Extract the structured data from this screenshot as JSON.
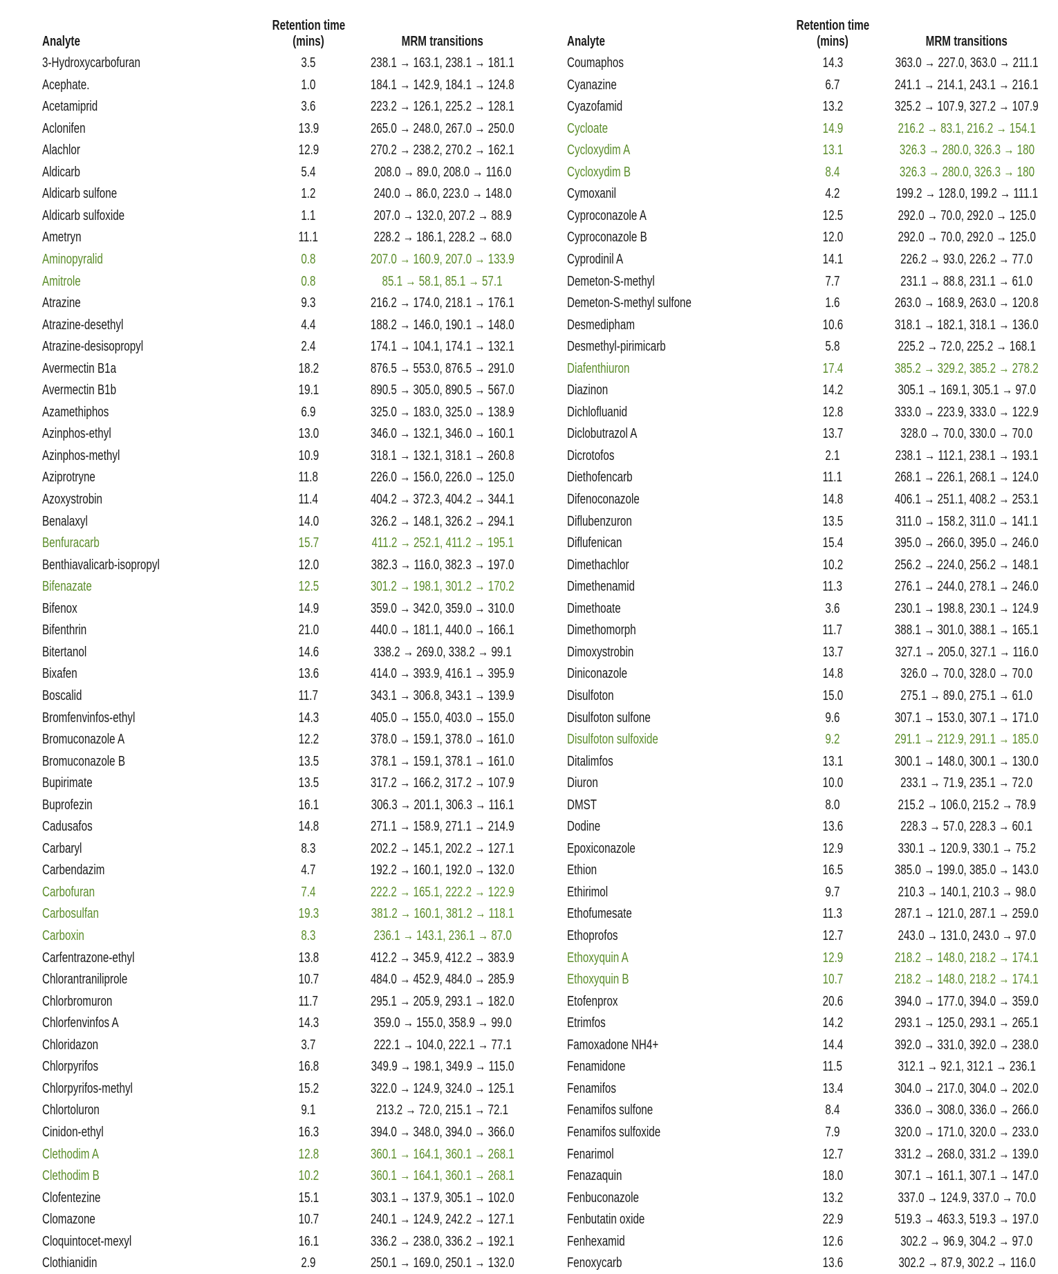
{
  "headers": {
    "analyte": "Analyte",
    "retention_line1": "Retention time",
    "retention_line2": "(mins)",
    "mrm": "MRM transitions"
  },
  "colors": {
    "text": "#1a1a1a",
    "highlight": "#5b8c2a"
  },
  "left_table": [
    {
      "analyte": "3-Hydroxycarbofuran",
      "rt": "3.5",
      "mrm": "238.1 → 163.1, 238.1 → 181.1",
      "highlighted": false
    },
    {
      "analyte": "Acephate.",
      "rt": "1.0",
      "mrm": "184.1 → 142.9, 184.1 → 124.8",
      "highlighted": false
    },
    {
      "analyte": "Acetamiprid",
      "rt": "3.6",
      "mrm": "223.2 → 126.1, 225.2 → 128.1",
      "highlighted": false
    },
    {
      "analyte": "Aclonifen",
      "rt": "13.9",
      "mrm": "265.0 → 248.0, 267.0 → 250.0",
      "highlighted": false
    },
    {
      "analyte": "Alachlor",
      "rt": "12.9",
      "mrm": "270.2 → 238.2, 270.2 → 162.1",
      "highlighted": false
    },
    {
      "analyte": "Aldicarb",
      "rt": "5.4",
      "mrm": "208.0 → 89.0, 208.0 → 116.0",
      "highlighted": false
    },
    {
      "analyte": "Aldicarb sulfone",
      "rt": "1.2",
      "mrm": "240.0 → 86.0, 223.0 → 148.0",
      "highlighted": false
    },
    {
      "analyte": "Aldicarb sulfoxide",
      "rt": "1.1",
      "mrm": "207.0 → 132.0, 207.2 → 88.9",
      "highlighted": false
    },
    {
      "analyte": "Ametryn",
      "rt": "11.1",
      "mrm": "228.2 → 186.1, 228.2 → 68.0",
      "highlighted": false
    },
    {
      "analyte": "Aminopyralid",
      "rt": "0.8",
      "mrm": "207.0 → 160.9, 207.0 → 133.9",
      "highlighted": true
    },
    {
      "analyte": "Amitrole",
      "rt": "0.8",
      "mrm": "85.1 → 58.1, 85.1 → 57.1",
      "highlighted": true
    },
    {
      "analyte": "Atrazine",
      "rt": "9.3",
      "mrm": "216.2 → 174.0, 218.1 → 176.1",
      "highlighted": false
    },
    {
      "analyte": "Atrazine-desethyl",
      "rt": "4.4",
      "mrm": "188.2 → 146.0, 190.1 → 148.0",
      "highlighted": false
    },
    {
      "analyte": "Atrazine-desisopropyl",
      "rt": "2.4",
      "mrm": "174.1 → 104.1, 174.1 → 132.1",
      "highlighted": false
    },
    {
      "analyte": "Avermectin B1a",
      "rt": "18.2",
      "mrm": "876.5 → 553.0, 876.5 → 291.0",
      "highlighted": false
    },
    {
      "analyte": "Avermectin B1b",
      "rt": "19.1",
      "mrm": "890.5 → 305.0, 890.5 → 567.0",
      "highlighted": false
    },
    {
      "analyte": "Azamethiphos",
      "rt": "6.9",
      "mrm": "325.0 → 183.0, 325.0 → 138.9",
      "highlighted": false
    },
    {
      "analyte": "Azinphos-ethyl",
      "rt": "13.0",
      "mrm": "346.0 → 132.1, 346.0 → 160.1",
      "highlighted": false
    },
    {
      "analyte": "Azinphos-methyl",
      "rt": "10.9",
      "mrm": "318.1 → 132.1, 318.1 → 260.8",
      "highlighted": false
    },
    {
      "analyte": "Aziprotryne",
      "rt": "11.8",
      "mrm": "226.0 → 156.0, 226.0 → 125.0",
      "highlighted": false
    },
    {
      "analyte": "Azoxystrobin",
      "rt": "11.4",
      "mrm": "404.2 → 372.3, 404.2 → 344.1",
      "highlighted": false
    },
    {
      "analyte": "Benalaxyl",
      "rt": "14.0",
      "mrm": "326.2 → 148.1, 326.2 → 294.1",
      "highlighted": false
    },
    {
      "analyte": "Benfuracarb",
      "rt": "15.7",
      "mrm": "411.2 → 252.1, 411.2 → 195.1",
      "highlighted": true
    },
    {
      "analyte": "Benthiavalicarb-isopropyl",
      "rt": "12.0",
      "mrm": "382.3 → 116.0, 382.3 → 197.0",
      "highlighted": false
    },
    {
      "analyte": "Bifenazate",
      "rt": "12.5",
      "mrm": "301.2 → 198.1, 301.2 → 170.2",
      "highlighted": true
    },
    {
      "analyte": "Bifenox",
      "rt": "14.9",
      "mrm": "359.0 → 342.0, 359.0 → 310.0",
      "highlighted": false
    },
    {
      "analyte": "Bifenthrin",
      "rt": "21.0",
      "mrm": "440.0 → 181.1, 440.0 → 166.1",
      "highlighted": false
    },
    {
      "analyte": "Bitertanol",
      "rt": "14.6",
      "mrm": "338.2 → 269.0, 338.2 → 99.1",
      "highlighted": false
    },
    {
      "analyte": "Bixafen",
      "rt": "13.6",
      "mrm": "414.0 → 393.9, 416.1 → 395.9",
      "highlighted": false
    },
    {
      "analyte": "Boscalid",
      "rt": "11.7",
      "mrm": "343.1 → 306.8, 343.1 → 139.9",
      "highlighted": false
    },
    {
      "analyte": "Bromfenvinfos-ethyl",
      "rt": "14.3",
      "mrm": "405.0 → 155.0, 403.0 → 155.0",
      "highlighted": false
    },
    {
      "analyte": "Bromuconazole A",
      "rt": "12.2",
      "mrm": "378.0 → 159.1, 378.0 → 161.0",
      "highlighted": false
    },
    {
      "analyte": "Bromuconazole B",
      "rt": "13.5",
      "mrm": "378.1 → 159.1, 378.1 → 161.0",
      "highlighted": false
    },
    {
      "analyte": "Bupirimate",
      "rt": "13.5",
      "mrm": "317.2 → 166.2, 317.2 → 107.9",
      "highlighted": false
    },
    {
      "analyte": "Buprofezin",
      "rt": "16.1",
      "mrm": "306.3 → 201.1, 306.3 → 116.1",
      "highlighted": false
    },
    {
      "analyte": "Cadusafos",
      "rt": "14.8",
      "mrm": "271.1 → 158.9, 271.1 → 214.9",
      "highlighted": false
    },
    {
      "analyte": "Carbaryl",
      "rt": "8.3",
      "mrm": "202.2 → 145.1, 202.2 → 127.1",
      "highlighted": false
    },
    {
      "analyte": "Carbendazim",
      "rt": "4.7",
      "mrm": "192.2 → 160.1, 192.0 → 132.0",
      "highlighted": false
    },
    {
      "analyte": "Carbofuran",
      "rt": "7.4",
      "mrm": "222.2 → 165.1, 222.2 → 122.9",
      "highlighted": true
    },
    {
      "analyte": "Carbosulfan",
      "rt": "19.3",
      "mrm": "381.2 → 160.1, 381.2 → 118.1",
      "highlighted": true
    },
    {
      "analyte": "Carboxin",
      "rt": "8.3",
      "mrm": "236.1 → 143.1, 236.1 → 87.0",
      "highlighted": true
    },
    {
      "analyte": "Carfentrazone-ethyl",
      "rt": "13.8",
      "mrm": "412.2 → 345.9, 412.2 → 383.9",
      "highlighted": false
    },
    {
      "analyte": "Chlorantraniliprole",
      "rt": "10.7",
      "mrm": "484.0 → 452.9, 484.0 → 285.9",
      "highlighted": false
    },
    {
      "analyte": "Chlorbromuron",
      "rt": "11.7",
      "mrm": "295.1 → 205.9, 293.1 → 182.0",
      "highlighted": false
    },
    {
      "analyte": "Chlorfenvinfos  A",
      "rt": "14.3",
      "mrm": "359.0 → 155.0, 358.9 → 99.0",
      "highlighted": false
    },
    {
      "analyte": "Chloridazon",
      "rt": "3.7",
      "mrm": "222.1 → 104.0, 222.1 → 77.1",
      "highlighted": false
    },
    {
      "analyte": "Chlorpyrifos",
      "rt": "16.8",
      "mrm": "349.9 → 198.1, 349.9 → 115.0",
      "highlighted": false
    },
    {
      "analyte": "Chlorpyrifos-methyl",
      "rt": "15.2",
      "mrm": "322.0 → 124.9, 324.0 → 125.1",
      "highlighted": false
    },
    {
      "analyte": "Chlortoluron",
      "rt": "9.1",
      "mrm": "213.2 → 72.0, 215.1 → 72.1",
      "highlighted": false
    },
    {
      "analyte": "Cinidon-ethyl",
      "rt": "16.3",
      "mrm": "394.0 → 348.0, 394.0 → 366.0",
      "highlighted": false
    },
    {
      "analyte": "Clethodim A",
      "rt": "12.8",
      "mrm": "360.1 → 164.1, 360.1 → 268.1",
      "highlighted": true
    },
    {
      "analyte": "Clethodim B",
      "rt": "10.2",
      "mrm": "360.1 → 164.1, 360.1 → 268.1",
      "highlighted": true
    },
    {
      "analyte": "Clofentezine",
      "rt": "15.1",
      "mrm": "303.1 → 137.9, 305.1 → 102.0",
      "highlighted": false
    },
    {
      "analyte": "Clomazone",
      "rt": "10.7",
      "mrm": "240.1 → 124.9, 242.2 → 127.1",
      "highlighted": false
    },
    {
      "analyte": "Cloquintocet-mexyl",
      "rt": "16.1",
      "mrm": "336.2 → 238.0, 336.2 → 192.1",
      "highlighted": false
    },
    {
      "analyte": "Clothianidin",
      "rt": "2.9",
      "mrm": "250.1 → 169.0, 250.1 → 132.0",
      "highlighted": false
    }
  ],
  "right_table": [
    {
      "analyte": "Coumaphos",
      "rt": "14.3",
      "mrm": "363.0 → 227.0, 363.0 → 211.1",
      "highlighted": false
    },
    {
      "analyte": "Cyanazine",
      "rt": "6.7",
      "mrm": "241.1 → 214.1, 243.1 → 216.1",
      "highlighted": false
    },
    {
      "analyte": "Cyazofamid",
      "rt": "13.2",
      "mrm": "325.2 → 107.9, 327.2 → 107.9",
      "highlighted": false
    },
    {
      "analyte": "Cycloate",
      "rt": "14.9",
      "mrm": "216.2 → 83.1, 216.2 → 154.1",
      "highlighted": true
    },
    {
      "analyte": "Cycloxydim A",
      "rt": "13.1",
      "mrm": "326.3 → 280.0, 326.3 → 180",
      "highlighted": true
    },
    {
      "analyte": "Cycloxydim B",
      "rt": "8.4",
      "mrm": "326.3 → 280.0, 326.3 → 180",
      "highlighted": true
    },
    {
      "analyte": "Cymoxanil",
      "rt": "4.2",
      "mrm": "199.2 → 128.0, 199.2 → 111.1",
      "highlighted": false
    },
    {
      "analyte": "Cyproconazole A",
      "rt": "12.5",
      "mrm": "292.0 → 70.0, 292.0 → 125.0",
      "highlighted": false
    },
    {
      "analyte": "Cyproconazole B",
      "rt": "12.0",
      "mrm": "292.0 → 70.0, 292.0 → 125.0",
      "highlighted": false
    },
    {
      "analyte": "Cyprodinil A",
      "rt": "14.1",
      "mrm": "226.2 → 93.0, 226.2 → 77.0",
      "highlighted": false
    },
    {
      "analyte": "Demeton-S-methyl",
      "rt": "7.7",
      "mrm": "231.1 → 88.8, 231.1 → 61.0",
      "highlighted": false
    },
    {
      "analyte": "Demeton-S-methyl sulfone",
      "rt": "1.6",
      "mrm": "263.0 → 168.9, 263.0 → 120.8",
      "highlighted": false
    },
    {
      "analyte": "Desmedipham",
      "rt": "10.6",
      "mrm": "318.1 → 182.1, 318.1 → 136.0",
      "highlighted": false
    },
    {
      "analyte": "Desmethyl-pirimicarb",
      "rt": "5.8",
      "mrm": "225.2 → 72.0, 225.2 → 168.1",
      "highlighted": false
    },
    {
      "analyte": "Diafenthiuron",
      "rt": "17.4",
      "mrm": "385.2 → 329.2, 385.2 → 278.2",
      "highlighted": true
    },
    {
      "analyte": "Diazinon",
      "rt": "14.2",
      "mrm": "305.1 → 169.1, 305.1 → 97.0",
      "highlighted": false
    },
    {
      "analyte": "Dichlofluanid",
      "rt": "12.8",
      "mrm": "333.0 → 223.9, 333.0 → 122.9",
      "highlighted": false
    },
    {
      "analyte": "Diclobutrazol A",
      "rt": "13.7",
      "mrm": "328.0 → 70.0, 330.0 → 70.0",
      "highlighted": false
    },
    {
      "analyte": "Dicrotofos",
      "rt": "2.1",
      "mrm": "238.1 → 112.1, 238.1 → 193.1",
      "highlighted": false
    },
    {
      "analyte": "Diethofencarb",
      "rt": "11.1",
      "mrm": "268.1 → 226.1, 268.1 → 124.0",
      "highlighted": false
    },
    {
      "analyte": "Difenoconazole",
      "rt": "14.8",
      "mrm": "406.1 → 251.1, 408.2 → 253.1",
      "highlighted": false
    },
    {
      "analyte": "Diflubenzuron",
      "rt": "13.5",
      "mrm": "311.0 → 158.2, 311.0 → 141.1",
      "highlighted": false
    },
    {
      "analyte": "Diflufenican",
      "rt": "15.4",
      "mrm": "395.0 → 266.0, 395.0 → 246.0",
      "highlighted": false
    },
    {
      "analyte": "Dimethachlor",
      "rt": "10.2",
      "mrm": "256.2 → 224.0, 256.2 → 148.1",
      "highlighted": false
    },
    {
      "analyte": "Dimethenamid",
      "rt": "11.3",
      "mrm": "276.1 → 244.0, 278.1 → 246.0",
      "highlighted": false
    },
    {
      "analyte": "Dimethoate",
      "rt": "3.6",
      "mrm": "230.1 → 198.8, 230.1 → 124.9",
      "highlighted": false
    },
    {
      "analyte": "Dimethomorph",
      "rt": "11.7",
      "mrm": "388.1 → 301.0, 388.1 → 165.1",
      "highlighted": false
    },
    {
      "analyte": "Dimoxystrobin",
      "rt": "13.7",
      "mrm": "327.1 → 205.0, 327.1 → 116.0",
      "highlighted": false
    },
    {
      "analyte": "Diniconazole",
      "rt": "14.8",
      "mrm": "326.0 → 70.0, 328.0 → 70.0",
      "highlighted": false
    },
    {
      "analyte": "Disulfoton",
      "rt": "15.0",
      "mrm": "275.1 → 89.0, 275.1 → 61.0",
      "highlighted": false
    },
    {
      "analyte": "Disulfoton sulfone",
      "rt": "9.6",
      "mrm": "307.1 → 153.0, 307.1 → 171.0",
      "highlighted": false
    },
    {
      "analyte": "Disulfoton sulfoxide",
      "rt": "9.2",
      "mrm": "291.1 → 212.9, 291.1 → 185.0",
      "highlighted": true
    },
    {
      "analyte": "Ditalimfos",
      "rt": "13.1",
      "mrm": "300.1 → 148.0, 300.1 → 130.0",
      "highlighted": false
    },
    {
      "analyte": "Diuron",
      "rt": "10.0",
      "mrm": "233.1 → 71.9, 235.1 → 72.0",
      "highlighted": false
    },
    {
      "analyte": "DMST",
      "rt": "8.0",
      "mrm": "215.2 → 106.0, 215.2 → 78.9",
      "highlighted": false
    },
    {
      "analyte": "Dodine",
      "rt": "13.6",
      "mrm": "228.3 → 57.0, 228.3 → 60.1",
      "highlighted": false
    },
    {
      "analyte": "Epoxiconazole",
      "rt": "12.9",
      "mrm": "330.1 → 120.9, 330.1 → 75.2",
      "highlighted": false
    },
    {
      "analyte": "Ethion",
      "rt": "16.5",
      "mrm": "385.0 → 199.0, 385.0 → 143.0",
      "highlighted": false
    },
    {
      "analyte": "Ethirimol",
      "rt": "9.7",
      "mrm": "210.3 → 140.1, 210.3 → 98.0",
      "highlighted": false
    },
    {
      "analyte": "Ethofumesate",
      "rt": "11.3",
      "mrm": "287.1 → 121.0, 287.1 → 259.0",
      "highlighted": false
    },
    {
      "analyte": "Ethoprofos",
      "rt": "12.7",
      "mrm": "243.0 → 131.0, 243.0 → 97.0",
      "highlighted": false
    },
    {
      "analyte": "Ethoxyquin A",
      "rt": "12.9",
      "mrm": "218.2 → 148.0, 218.2 → 174.1",
      "highlighted": true
    },
    {
      "analyte": "Ethoxyquin B",
      "rt": "10.7",
      "mrm": "218.2 → 148.0, 218.2 → 174.1",
      "highlighted": true
    },
    {
      "analyte": "Etofenprox",
      "rt": "20.6",
      "mrm": "394.0 → 177.0, 394.0 → 359.0",
      "highlighted": false
    },
    {
      "analyte": "Etrimfos",
      "rt": "14.2",
      "mrm": "293.1 → 125.0, 293.1 → 265.1",
      "highlighted": false
    },
    {
      "analyte": "Famoxadone NH4+",
      "rt": "14.4",
      "mrm": "392.0 → 331.0, 392.0 → 238.0",
      "highlighted": false
    },
    {
      "analyte": "Fenamidone",
      "rt": "11.5",
      "mrm": "312.1 → 92.1, 312.1 → 236.1",
      "highlighted": false
    },
    {
      "analyte": "Fenamifos",
      "rt": "13.4",
      "mrm": "304.0 → 217.0, 304.0 → 202.0",
      "highlighted": false
    },
    {
      "analyte": "Fenamifos sulfone",
      "rt": "8.4",
      "mrm": "336.0 → 308.0, 336.0 → 266.0",
      "highlighted": false
    },
    {
      "analyte": "Fenamifos sulfoxide",
      "rt": "7.9",
      "mrm": "320.0 → 171.0, 320.0 → 233.0",
      "highlighted": false
    },
    {
      "analyte": "Fenarimol",
      "rt": "12.7",
      "mrm": "331.2 → 268.0, 331.2 → 139.0",
      "highlighted": false
    },
    {
      "analyte": "Fenazaquin",
      "rt": "18.0",
      "mrm": "307.1 → 161.1, 307.1 → 147.0",
      "highlighted": false
    },
    {
      "analyte": "Fenbuconazole",
      "rt": "13.2",
      "mrm": "337.0 → 124.9, 337.0 → 70.0",
      "highlighted": false
    },
    {
      "analyte": "Fenbutatin oxide",
      "rt": "22.9",
      "mrm": "519.3 → 463.3, 519.3 → 197.0",
      "highlighted": false
    },
    {
      "analyte": "Fenhexamid",
      "rt": "12.6",
      "mrm": "302.2 → 96.9, 304.2 → 97.0",
      "highlighted": false
    },
    {
      "analyte": "Fenoxycarb",
      "rt": "13.6",
      "mrm": "302.2 → 87.9, 302.2 → 116.0",
      "highlighted": false
    }
  ]
}
